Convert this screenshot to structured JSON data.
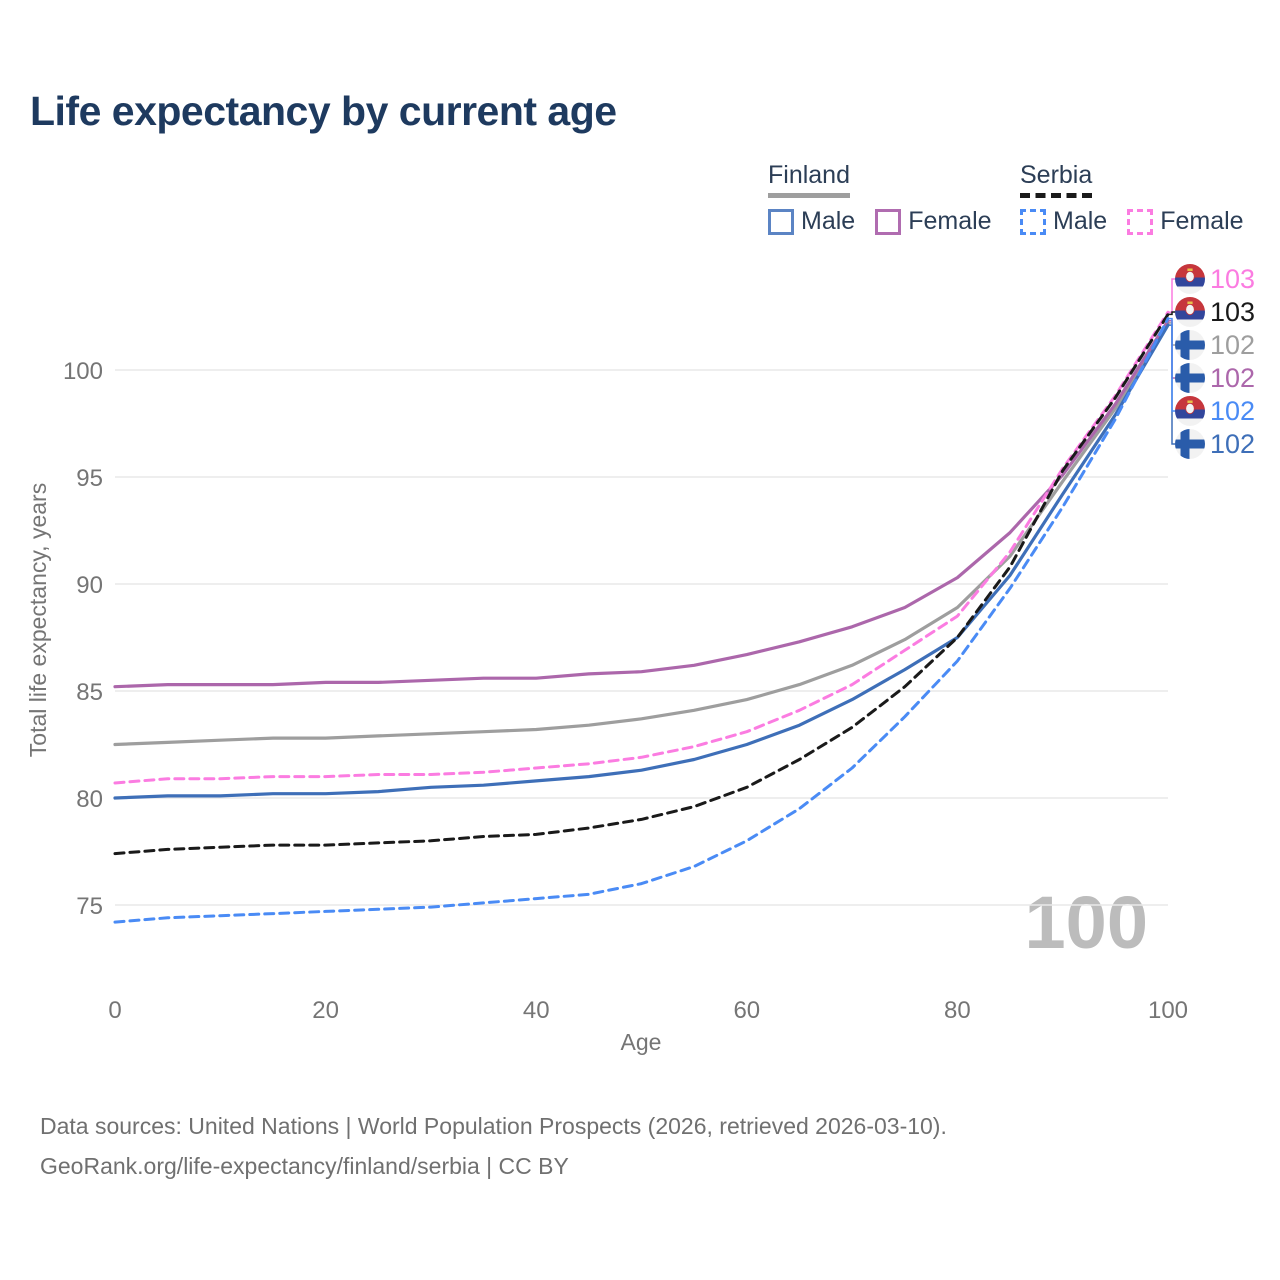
{
  "title": "Life expectancy by current age",
  "legend": {
    "finland": {
      "label": "Finland",
      "male": "Male",
      "female": "Female"
    },
    "serbia": {
      "label": "Serbia",
      "male": "Male",
      "female": "Female"
    }
  },
  "watermark": "100",
  "footer": {
    "line1": "Data sources: United Nations | World Population Prospects (2026, retrieved 2026-03-10).",
    "line2": "GeoRank.org/life-expectancy/finland/serbia | CC BY"
  },
  "colors": {
    "title": "#1e3a5f",
    "axis_text": "#757575",
    "gridline": "#e9e9e9",
    "watermark": "#bcbcbc",
    "finland_total": "#9e9e9e",
    "finland_male": "#3e6fb8",
    "finland_female": "#ac67ab",
    "serbia_total": "#1a1a1a",
    "serbia_male": "#4a8bf5",
    "serbia_female": "#fb7ce1"
  },
  "chart_data": {
    "type": "line",
    "title": "Life expectancy by current age",
    "xlabel": "Age",
    "ylabel": "Total life expectancy, years",
    "xlim": [
      0,
      100
    ],
    "ylim": [
      73,
      104
    ],
    "x_ticks": [
      0,
      20,
      40,
      60,
      80,
      100
    ],
    "y_ticks": [
      75,
      80,
      85,
      90,
      95,
      100
    ],
    "grid": "horizontal",
    "legend_position": "top-right",
    "ages": [
      0,
      5,
      10,
      15,
      20,
      25,
      30,
      35,
      40,
      45,
      50,
      55,
      60,
      65,
      70,
      75,
      80,
      85,
      90,
      95,
      100
    ],
    "series": [
      {
        "name": "Finland Total",
        "country": "finland",
        "sex": "total",
        "line": "solid",
        "color": "#9e9e9e",
        "end_label": "102",
        "row": 2,
        "values": [
          82.5,
          82.6,
          82.7,
          82.8,
          82.8,
          82.9,
          83.0,
          83.1,
          83.2,
          83.4,
          83.7,
          84.1,
          84.6,
          85.3,
          86.2,
          87.4,
          88.9,
          91.3,
          94.8,
          98.2,
          102.2
        ]
      },
      {
        "name": "Finland Female",
        "country": "finland",
        "sex": "female",
        "line": "solid",
        "color": "#ac67ab",
        "end_label": "102",
        "row": 3,
        "values": [
          85.2,
          85.3,
          85.3,
          85.3,
          85.4,
          85.4,
          85.5,
          85.6,
          85.6,
          85.8,
          85.9,
          86.2,
          86.7,
          87.3,
          88.0,
          88.9,
          90.3,
          92.4,
          95.1,
          98.4,
          102.3
        ]
      },
      {
        "name": "Finland Male",
        "country": "finland",
        "sex": "male",
        "line": "solid",
        "color": "#3e6fb8",
        "end_label": "102",
        "row": 5,
        "values": [
          80.0,
          80.1,
          80.1,
          80.2,
          80.2,
          80.3,
          80.5,
          80.6,
          80.8,
          81.0,
          81.3,
          81.8,
          82.5,
          83.4,
          84.6,
          86.0,
          87.5,
          90.4,
          94.2,
          97.9,
          102.1
        ]
      },
      {
        "name": "Serbia Female",
        "country": "serbia",
        "sex": "female",
        "line": "dashed",
        "color": "#fb7ce1",
        "end_label": "103",
        "row": 0,
        "values": [
          80.7,
          80.9,
          80.9,
          81.0,
          81.0,
          81.1,
          81.1,
          81.2,
          81.4,
          81.6,
          81.9,
          82.4,
          83.1,
          84.1,
          85.3,
          86.9,
          88.5,
          91.5,
          95.4,
          98.8,
          102.7
        ]
      },
      {
        "name": "Serbia Total",
        "country": "serbia",
        "sex": "total",
        "line": "dashed",
        "color": "#1a1a1a",
        "end_label": "103",
        "row": 1,
        "values": [
          77.4,
          77.6,
          77.7,
          77.8,
          77.8,
          77.9,
          78.0,
          78.2,
          78.3,
          78.6,
          79.0,
          79.6,
          80.5,
          81.8,
          83.3,
          85.2,
          87.5,
          90.8,
          95.3,
          98.7,
          102.6
        ]
      },
      {
        "name": "Serbia Male",
        "country": "serbia",
        "sex": "male",
        "line": "dashed",
        "color": "#4a8bf5",
        "end_label": "102",
        "row": 4,
        "values": [
          74.2,
          74.4,
          74.5,
          74.6,
          74.7,
          74.8,
          74.9,
          75.1,
          75.3,
          75.5,
          76.0,
          76.8,
          78.0,
          79.5,
          81.4,
          83.8,
          86.4,
          89.8,
          93.6,
          97.7,
          102.4
        ]
      }
    ],
    "end_label_rows": [
      {
        "value": "103",
        "flag": "serbia",
        "color": "#fb7ce1"
      },
      {
        "value": "103",
        "flag": "serbia",
        "color": "#1a1a1a"
      },
      {
        "value": "102",
        "flag": "finland",
        "color": "#9e9e9e"
      },
      {
        "value": "102",
        "flag": "finland",
        "color": "#ac67ab"
      },
      {
        "value": "102",
        "flag": "serbia",
        "color": "#4a8bf5"
      },
      {
        "value": "102",
        "flag": "finland",
        "color": "#3e6fb8"
      }
    ]
  }
}
